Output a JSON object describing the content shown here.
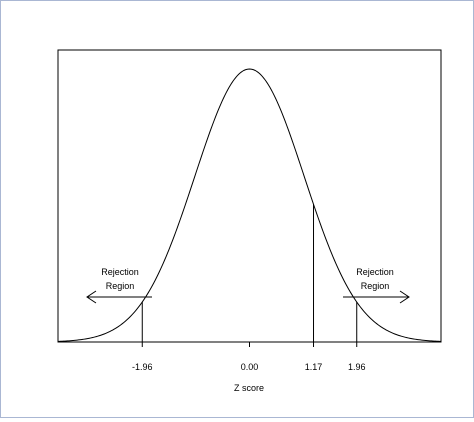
{
  "chart_data": {
    "type": "line",
    "curve": "standard-normal-density",
    "xlabel": "Z score",
    "ylabel": "",
    "title": "",
    "xlim": [
      -3.5,
      3.5
    ],
    "ylim": [
      0,
      0.42
    ],
    "x_ticks": [
      {
        "value": -1.96,
        "label": "-1.96"
      },
      {
        "value": 0.0,
        "label": "0.00"
      },
      {
        "value": 1.17,
        "label": "1.17"
      },
      {
        "value": 1.96,
        "label": "1.96"
      }
    ],
    "markers": [
      {
        "x": -1.96,
        "kind": "critical-value"
      },
      {
        "x": 1.17,
        "kind": "observed-z"
      },
      {
        "x": 1.96,
        "kind": "critical-value"
      }
    ],
    "annotations": {
      "left_region": [
        "Rejection",
        "Region"
      ],
      "right_region": [
        "Rejection",
        "Region"
      ]
    },
    "grid": false,
    "line_color": "#000000"
  }
}
